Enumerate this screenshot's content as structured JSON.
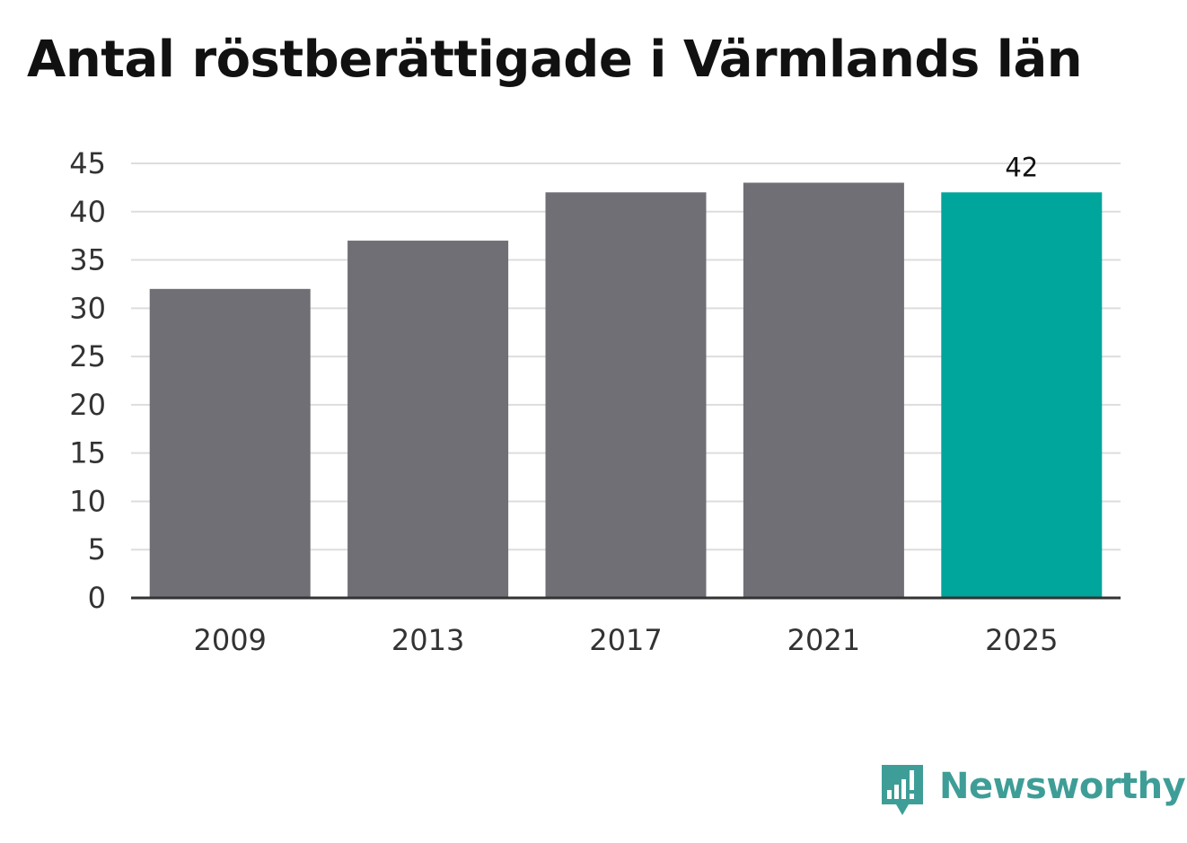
{
  "chart_data": {
    "type": "bar",
    "title": "Antal röstberättigade i Värmlands län",
    "categories": [
      "2009",
      "2013",
      "2017",
      "2021",
      "2025"
    ],
    "values": [
      32,
      37,
      42,
      43,
      42
    ],
    "data_labels": [
      null,
      null,
      null,
      null,
      "42"
    ],
    "ylim": [
      0,
      45
    ],
    "yticks": [
      "0",
      "5",
      "10",
      "15",
      "20",
      "25",
      "30",
      "35",
      "40",
      "45"
    ],
    "xlabel": "",
    "ylabel": "",
    "grid": true,
    "colors": {
      "bar": "#706f75",
      "highlight": "#00a59b",
      "grid": "#dddddd",
      "axis": "#333333"
    },
    "highlight_index": 4
  },
  "brand": {
    "name": "Newsworthy",
    "icon": "newsworthy-logo-icon",
    "color": "#3e9e97"
  }
}
